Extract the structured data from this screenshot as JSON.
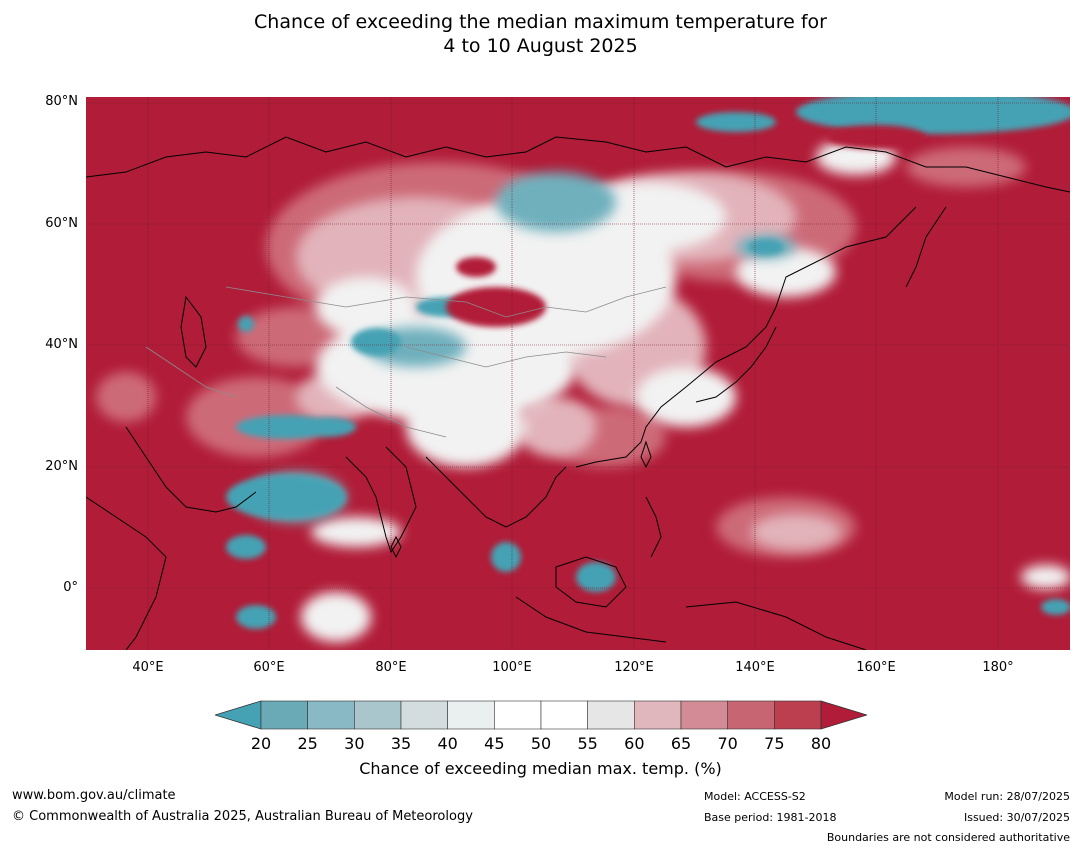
{
  "title": {
    "line1": "Chance of exceeding the median maximum temperature for",
    "line2": "4 to 10 August 2025"
  },
  "map": {
    "lat_labels": [
      "80°N",
      "60°N",
      "40°N",
      "20°N",
      "0°"
    ],
    "lon_labels": [
      "40°E",
      "60°E",
      "80°E",
      "100°E",
      "120°E",
      "140°E",
      "160°E",
      "180°"
    ],
    "colors": {
      "high": "#b11c38",
      "low": "#45a2b4",
      "neutral": "#ffffff",
      "coast": "#000000",
      "border": "#808080"
    }
  },
  "colorbar": {
    "ticks": [
      "20",
      "25",
      "30",
      "35",
      "40",
      "45",
      "50",
      "55",
      "60",
      "65",
      "70",
      "75",
      "80"
    ],
    "colors": [
      "#45a2b4",
      "#6aa9b6",
      "#88b9c5",
      "#a9c6cc",
      "#d3dcdf",
      "#eaeff0",
      "#ffffff",
      "#ffffff",
      "#e6e6e6",
      "#dfb7bd",
      "#d38b95",
      "#c76672",
      "#bb3f4f",
      "#b11c38"
    ],
    "label": "Chance of exceeding median max. temp. (%)"
  },
  "footer": {
    "website": "www.bom.gov.au/climate",
    "copyright": "© Commonwealth of Australia 2025, Australian Bureau of Meteorology",
    "model": "Model: ACCESS-S2",
    "base_period": "Base period: 1981-2018",
    "model_run": "Model run: 28/07/2025",
    "issued": "Issued: 30/07/2025",
    "disclaimer": "Boundaries are not considered authoritative"
  }
}
